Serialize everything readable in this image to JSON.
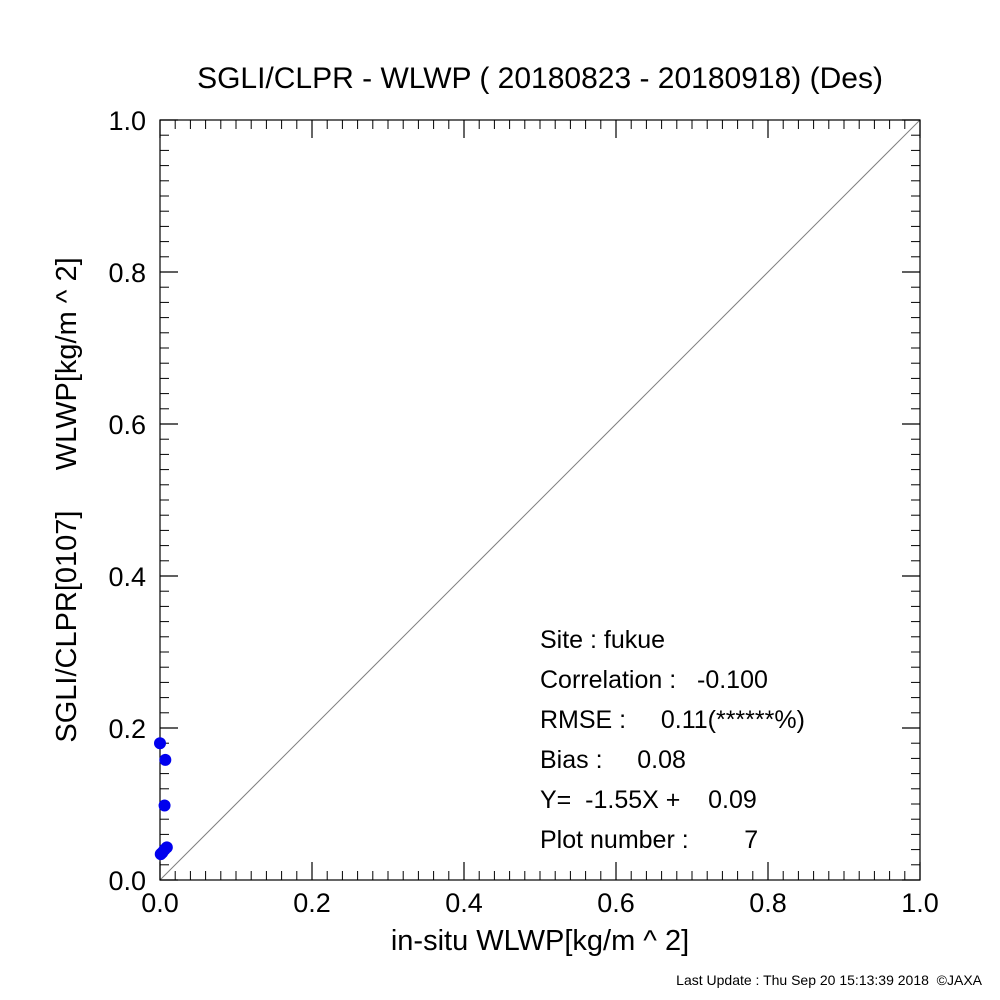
{
  "chart_data": {
    "type": "scatter",
    "title": "SGLI/CLPR - WLWP ( 20180823 - 20180918) (Des)",
    "xlabel": "in-situ WLWP[kg/m ^ 2]",
    "ylabel": "SGLI/CLPR[0107]     WLWP[kg/m ^ 2]",
    "xlim": [
      0.0,
      1.0
    ],
    "ylim": [
      0.0,
      1.0
    ],
    "x_ticks": [
      "0.0",
      "0.2",
      "0.4",
      "0.6",
      "0.8",
      "1.0"
    ],
    "y_ticks": [
      "0.0",
      "0.2",
      "0.4",
      "0.6",
      "0.8",
      "1.0"
    ],
    "tick_values": [
      0.0,
      0.2,
      0.4,
      0.6,
      0.8,
      1.0
    ],
    "minor_tick_step": 0.02,
    "reference_line": "1:1",
    "grid": false,
    "point_color": "#0000ee",
    "line_color": "#808080",
    "points": [
      {
        "x": 0.0,
        "y": 0.18
      },
      {
        "x": 0.007,
        "y": 0.158
      },
      {
        "x": 0.006,
        "y": 0.098
      },
      {
        "x": 0.009,
        "y": 0.043
      },
      {
        "x": 0.006,
        "y": 0.04
      },
      {
        "x": 0.003,
        "y": 0.036
      },
      {
        "x": 0.001,
        "y": 0.034
      }
    ],
    "stats": {
      "site": "Site : fukue",
      "correlation": "Correlation :   -0.100",
      "rmse": "RMSE :     0.11(******%)",
      "bias": "Bias :     0.08",
      "regression": "Y=  -1.55X +    0.09",
      "plot_number": "Plot number :        7"
    }
  },
  "footer": "Last Update : Thu Sep 20 15:13:39 2018  ©JAXA"
}
